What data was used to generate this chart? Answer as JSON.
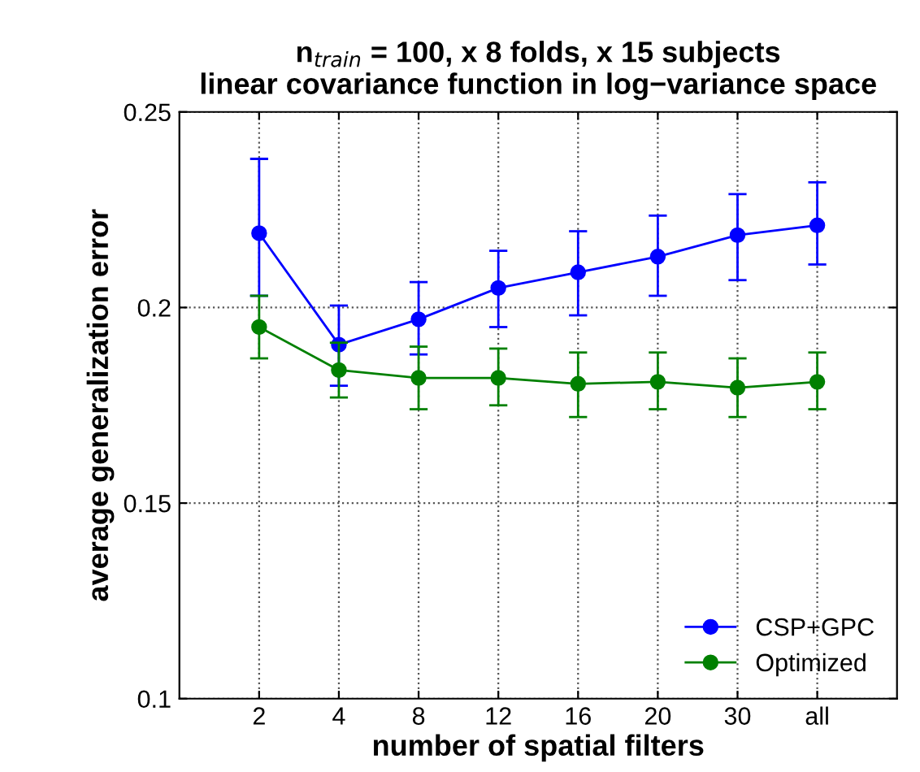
{
  "chart_data": {
    "type": "line",
    "title": "n$_{train}$ = 100, x 8 folds, x 15 subjects\nlinear covariance function in log−variance space",
    "xlabel": "number of spatial filters",
    "ylabel": "average generalization error",
    "categories": [
      "2",
      "4",
      "8",
      "12",
      "16",
      "20",
      "30",
      "all"
    ],
    "series": [
      {
        "name": "CSP+GPC",
        "color": "#0000ff",
        "values": [
          0.219,
          0.1905,
          0.197,
          0.205,
          0.209,
          0.213,
          0.2185,
          0.221
        ],
        "errors": [
          [
            0.203,
            0.238
          ],
          [
            0.18,
            0.2005
          ],
          [
            0.188,
            0.2065
          ],
          [
            0.195,
            0.2145
          ],
          [
            0.198,
            0.2195
          ],
          [
            0.203,
            0.2235
          ],
          [
            0.207,
            0.229
          ],
          [
            0.211,
            0.232
          ]
        ]
      },
      {
        "name": "Optimized",
        "color": "#008000",
        "values": [
          0.195,
          0.184,
          0.182,
          0.182,
          0.1805,
          0.181,
          0.1795,
          0.181
        ],
        "errors": [
          [
            0.187,
            0.203
          ],
          [
            0.177,
            0.191
          ],
          [
            0.174,
            0.19
          ],
          [
            0.175,
            0.1895
          ],
          [
            0.172,
            0.1885
          ],
          [
            0.174,
            0.1885
          ],
          [
            0.172,
            0.187
          ],
          [
            0.174,
            0.1885
          ]
        ]
      }
    ],
    "ylim": [
      0.1,
      0.25
    ],
    "yticks": [
      0.1,
      0.15,
      0.2,
      0.25
    ],
    "grid": true,
    "legend": "bottom right",
    "marker": "circle",
    "line_style": "solid"
  }
}
